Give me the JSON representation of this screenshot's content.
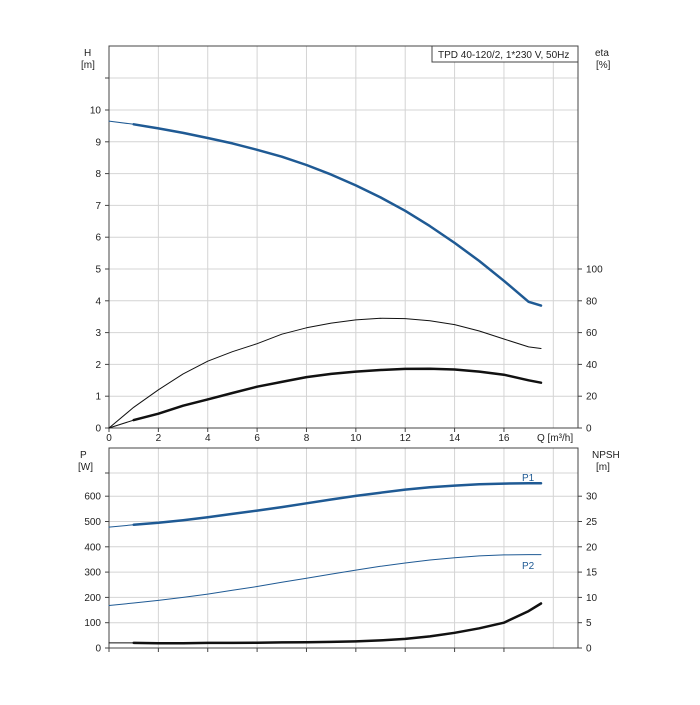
{
  "chart_title": "TPD 40-120/2, 1*230 V, 50Hz",
  "colors": {
    "blue": "#1f5a94",
    "black": "#111111",
    "grid": "#d4d4d4"
  },
  "chart_data": [
    {
      "type": "line",
      "panel": "top",
      "x_label": "Q [m³/h]",
      "y_left": {
        "name": "H",
        "unit": "[m]",
        "range": [
          0,
          11
        ],
        "ticks": [
          0,
          1,
          2,
          3,
          4,
          5,
          6,
          7,
          8,
          9,
          10
        ]
      },
      "y_right": {
        "name": "eta",
        "unit": "[%]",
        "range": [
          0,
          100
        ],
        "ticks": [
          0,
          20,
          40,
          60,
          80,
          100
        ]
      },
      "x_range": [
        0,
        19
      ],
      "x_ticks": [
        0,
        2,
        4,
        6,
        8,
        10,
        12,
        14,
        16
      ],
      "series": [
        {
          "id": "H",
          "axis": "left",
          "color": "blue",
          "width": 2.5,
          "x": [
            1,
            2,
            3,
            4,
            5,
            6,
            7,
            8,
            9,
            10,
            11,
            12,
            13,
            14,
            15,
            16,
            17,
            17.5
          ],
          "y": [
            9.55,
            9.42,
            9.28,
            9.12,
            8.95,
            8.75,
            8.53,
            8.27,
            7.97,
            7.63,
            7.25,
            6.83,
            6.35,
            5.82,
            5.25,
            4.63,
            3.97,
            3.85
          ]
        },
        {
          "id": "H-ext",
          "axis": "left",
          "color": "blue",
          "width": 1,
          "x": [
            0,
            1
          ],
          "y": [
            9.65,
            9.55
          ]
        },
        {
          "id": "eta-thin",
          "axis": "right",
          "color": "black",
          "width": 1,
          "x": [
            0,
            1,
            2,
            3,
            4,
            5,
            6,
            7,
            8,
            9,
            10,
            11,
            12,
            13,
            14,
            15,
            16,
            17,
            17.5
          ],
          "y": [
            0,
            13,
            24,
            34,
            42,
            48,
            53,
            59,
            63,
            66,
            68,
            69,
            68.8,
            67.5,
            65,
            61,
            56,
            51,
            50
          ]
        },
        {
          "id": "eta-thick",
          "axis": "right",
          "color": "black",
          "width": 2.5,
          "x": [
            1,
            2,
            3,
            4,
            5,
            6,
            7,
            8,
            9,
            10,
            11,
            12,
            13,
            14,
            15,
            16,
            17,
            17.5
          ],
          "y": [
            5,
            9,
            14,
            18,
            22,
            26,
            29,
            32,
            34,
            35.5,
            36.5,
            37.2,
            37.3,
            36.8,
            35.5,
            33.5,
            30,
            28.5
          ]
        },
        {
          "id": "eta-ext",
          "axis": "right",
          "color": "black",
          "width": 1,
          "x": [
            0,
            1
          ],
          "y": [
            0,
            5
          ]
        }
      ]
    },
    {
      "type": "line",
      "panel": "bottom",
      "y_left": {
        "name": "P",
        "unit": "[W]",
        "range": [
          0,
          700
        ],
        "ticks": [
          0,
          100,
          200,
          300,
          400,
          500,
          600
        ]
      },
      "y_right": {
        "name": "NPSH",
        "unit": "[m]",
        "range": [
          0,
          35
        ],
        "ticks": [
          0,
          5,
          10,
          15,
          20,
          25,
          30
        ]
      },
      "x_range": [
        0,
        19
      ],
      "series": [
        {
          "id": "P1",
          "name": "P1",
          "axis": "left",
          "color": "blue",
          "width": 2.5,
          "x": [
            1,
            2,
            3,
            4,
            5,
            6,
            7,
            8,
            9,
            10,
            11,
            12,
            13,
            14,
            15,
            16,
            17,
            17.5
          ],
          "y": [
            487,
            495,
            505,
            517,
            530,
            543,
            557,
            572,
            587,
            601,
            614,
            626,
            635,
            642,
            647,
            650,
            651,
            651
          ]
        },
        {
          "id": "P1-ext",
          "axis": "left",
          "color": "blue",
          "width": 1,
          "x": [
            0,
            1
          ],
          "y": [
            478,
            487
          ]
        },
        {
          "id": "P2",
          "name": "P2",
          "axis": "left",
          "color": "blue",
          "width": 1,
          "x": [
            0,
            1,
            2,
            3,
            4,
            5,
            6,
            7,
            8,
            9,
            10,
            11,
            12,
            13,
            14,
            15,
            16,
            17,
            17.5
          ],
          "y": [
            168,
            178,
            188,
            200,
            213,
            228,
            243,
            260,
            276,
            292,
            308,
            323,
            336,
            348,
            357,
            364,
            368,
            369,
            369
          ]
        },
        {
          "id": "NPSH",
          "axis": "right",
          "color": "black",
          "width": 2.5,
          "x": [
            1,
            2,
            3,
            4,
            5,
            6,
            7,
            8,
            9,
            10,
            11,
            12,
            13,
            14,
            15,
            16,
            17,
            17.5
          ],
          "y": [
            1.0,
            0.95,
            0.95,
            1.0,
            1.0,
            1.05,
            1.1,
            1.15,
            1.2,
            1.3,
            1.5,
            1.8,
            2.3,
            3.0,
            3.9,
            5.0,
            7.3,
            8.8
          ]
        },
        {
          "id": "NPSH-ext",
          "axis": "right",
          "color": "black",
          "width": 1,
          "x": [
            0,
            1
          ],
          "y": [
            1.0,
            1.0
          ]
        }
      ]
    }
  ]
}
